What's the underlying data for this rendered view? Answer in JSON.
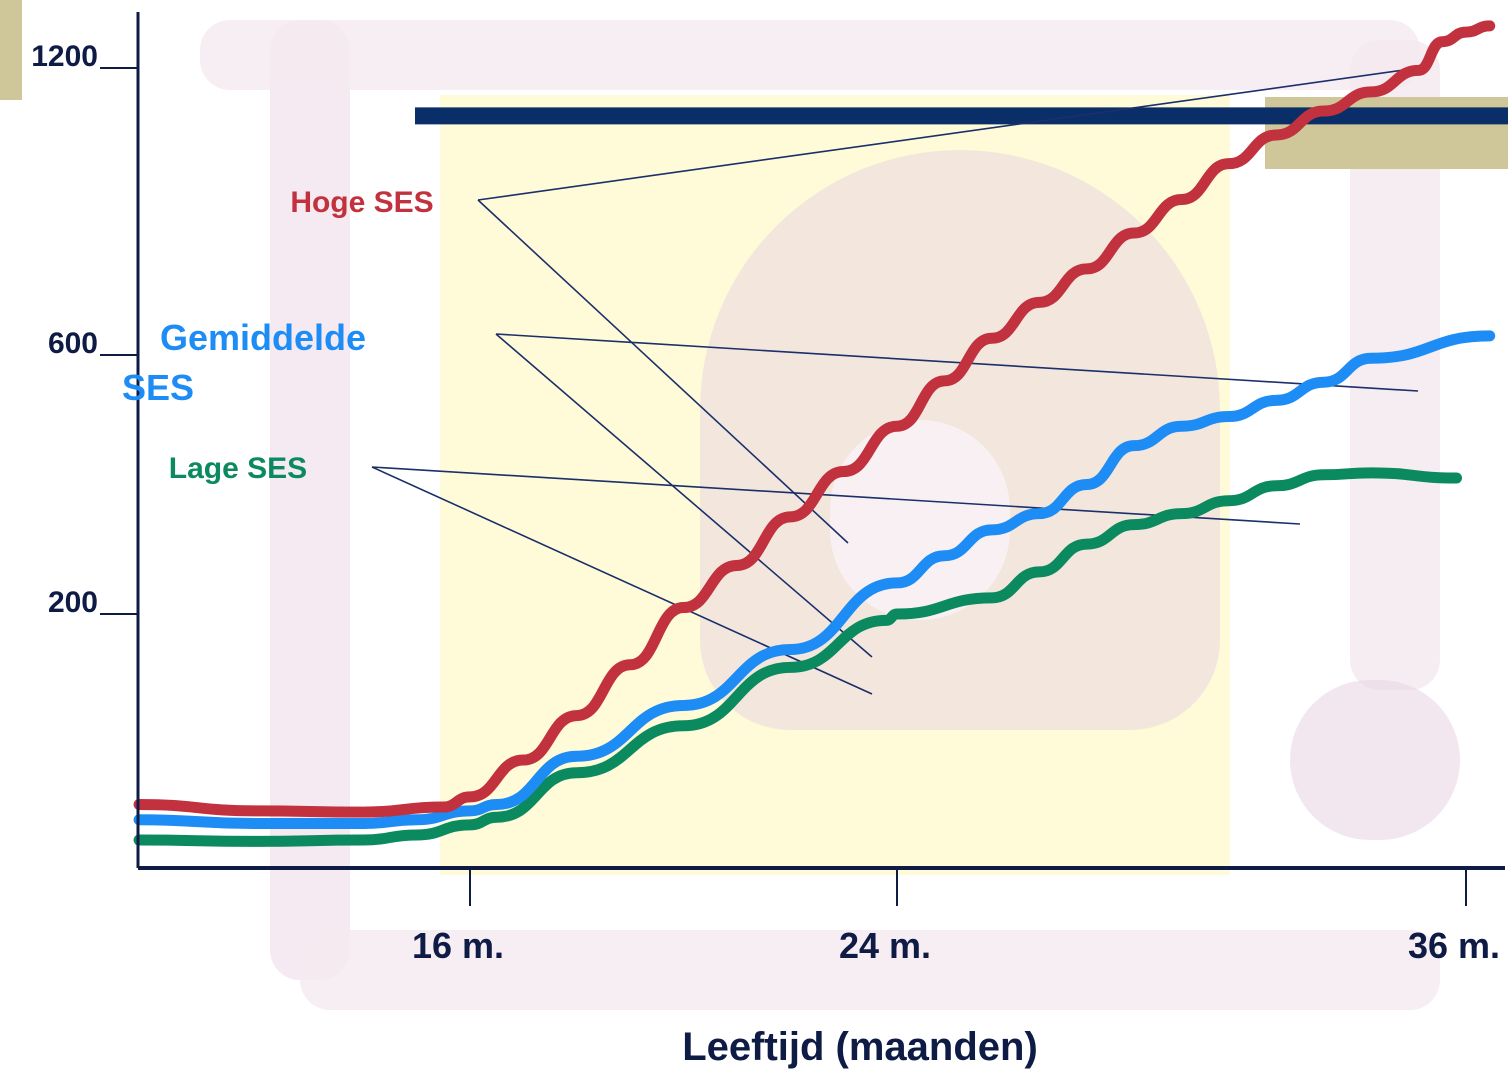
{
  "colors": {
    "hoge": "#c1313e",
    "gemiddelde": "#1e8cf5",
    "lage": "#0a8a5e",
    "axis": "#0d1b45",
    "text": "#0d1b45",
    "hbar": "#0a2f68",
    "accent": "#cfc79a",
    "callout": "#1a2f6b"
  },
  "chart_data": {
    "type": "line",
    "xlabel": "Leeftijd (maanden)",
    "ylabel": "",
    "x_ticks": [
      {
        "value": 16,
        "label": "16 m."
      },
      {
        "value": 24,
        "label": "24 m."
      },
      {
        "value": 36,
        "label": "36 m."
      }
    ],
    "y_ticks": [
      {
        "value": 200,
        "label": "200"
      },
      {
        "value": 600,
        "label": "600"
      },
      {
        "value": 1200,
        "label": "1200"
      }
    ],
    "reference_line": {
      "y": 1100
    },
    "series": [
      {
        "name": "Hoge SES",
        "color_key": "hoge",
        "points": [
          [
            9.8,
            50
          ],
          [
            12,
            45
          ],
          [
            14,
            44
          ],
          [
            15.5,
            48
          ],
          [
            16,
            56
          ],
          [
            17,
            85
          ],
          [
            18,
            120
          ],
          [
            19,
            160
          ],
          [
            20,
            210
          ],
          [
            21,
            275
          ],
          [
            22,
            350
          ],
          [
            23,
            420
          ],
          [
            24,
            490
          ],
          [
            25,
            560
          ],
          [
            26,
            635
          ],
          [
            27,
            710
          ],
          [
            28,
            780
          ],
          [
            29,
            855
          ],
          [
            30,
            925
          ],
          [
            31,
            1000
          ],
          [
            32,
            1060
          ],
          [
            33,
            1110
          ],
          [
            34,
            1150
          ],
          [
            35,
            1195
          ],
          [
            35.5,
            1255
          ],
          [
            36,
            1275
          ],
          [
            36.5,
            1288
          ]
        ]
      },
      {
        "name": "Gemiddelde SES",
        "color_key": "gemiddelde",
        "points": [
          [
            9.8,
            38
          ],
          [
            12,
            35
          ],
          [
            14,
            35
          ],
          [
            15,
            38
          ],
          [
            16,
            45
          ],
          [
            16.5,
            50
          ],
          [
            18,
            88
          ],
          [
            20,
            128
          ],
          [
            22,
            172
          ],
          [
            24,
            248
          ],
          [
            25,
            290
          ],
          [
            26,
            330
          ],
          [
            27,
            355
          ],
          [
            28,
            400
          ],
          [
            29,
            460
          ],
          [
            30,
            490
          ],
          [
            31,
            505
          ],
          [
            32,
            530
          ],
          [
            33,
            558
          ],
          [
            34,
            595
          ],
          [
            36.5,
            640
          ]
        ]
      },
      {
        "name": "Lage SES",
        "color_key": "lage",
        "points": [
          [
            9.8,
            22
          ],
          [
            12,
            21
          ],
          [
            14,
            22
          ],
          [
            15,
            26
          ],
          [
            16,
            34
          ],
          [
            16.5,
            40
          ],
          [
            18,
            75
          ],
          [
            20,
            112
          ],
          [
            22,
            158
          ],
          [
            23.8,
            195
          ],
          [
            24,
            200
          ],
          [
            26,
            225
          ],
          [
            27,
            265
          ],
          [
            28,
            308
          ],
          [
            29,
            338
          ],
          [
            30,
            355
          ],
          [
            31,
            375
          ],
          [
            32,
            398
          ],
          [
            33,
            415
          ],
          [
            34,
            418
          ],
          [
            35.8,
            410
          ]
        ]
      }
    ],
    "series_labels": [
      {
        "text": "Hoge SES",
        "color_key": "hoge"
      },
      {
        "text": "Gemiddelde\nSES",
        "color_key": "gemiddelde"
      },
      {
        "text": "Lage SES",
        "color_key": "lage"
      }
    ],
    "grid": false
  }
}
